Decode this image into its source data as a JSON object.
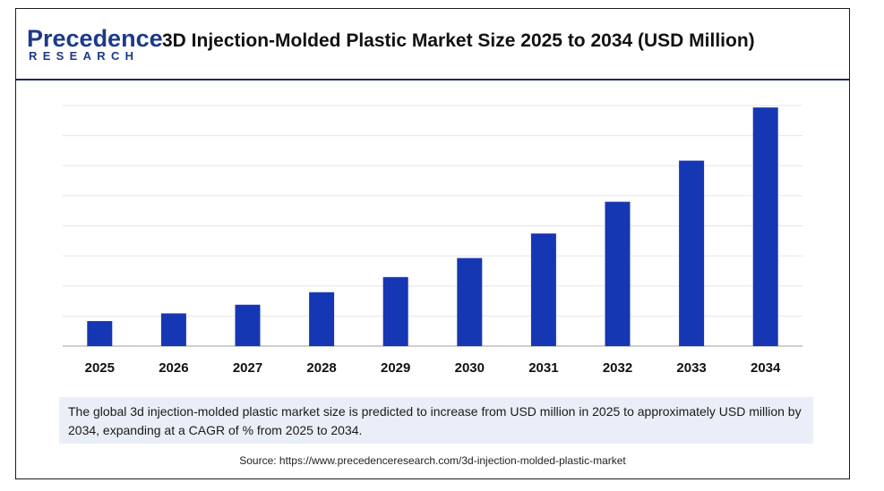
{
  "header": {
    "logo_top": "Precedence",
    "logo_bottom": "RESEARCH",
    "title": "3D Injection-Molded Plastic Market Size 2025 to 2034 (USD Million)"
  },
  "caption": "The global 3d injection-molded plastic market size is predicted to increase from USD  million in 2025 to approximately USD million by 2034, expanding at a CAGR of % from 2025 to 2034.",
  "source": "Source: https://www.precedenceresearch.com/3d-injection-molded-plastic-market",
  "colors": {
    "bar": "#1637b3",
    "grid": "#e6e6e6",
    "axis": "#bdbdbd"
  },
  "chart_data": {
    "type": "bar",
    "categories": [
      "2025",
      "2026",
      "2027",
      "2028",
      "2029",
      "2030",
      "2031",
      "2032",
      "2033",
      "2034"
    ],
    "values": [
      0.104,
      0.136,
      0.172,
      0.224,
      0.287,
      0.366,
      0.468,
      0.6,
      0.771,
      0.992
    ],
    "grid": true,
    "ylim": [
      0,
      1
    ],
    "xlabel": "",
    "ylabel": ""
  }
}
